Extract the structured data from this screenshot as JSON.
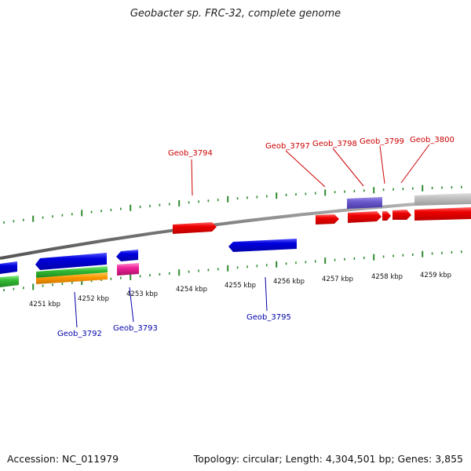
{
  "title": "Geobacter sp. FRC-32, complete genome",
  "footer": {
    "accession": "Accession: NC_011979",
    "summary": "Topology: circular; Length: 4,304,501 bp; Genes: 3,855"
  },
  "colors": {
    "backbone": "#808080",
    "tick": "#2e8b2e",
    "red": "#ee0000",
    "blue": "#0000dd",
    "green": "#33bb33",
    "orange": "#ff9900",
    "pink": "#ee2299",
    "purple": "#6a5acd",
    "grey": "#c0c0c0",
    "label_forward": "#cc0000",
    "label_reverse": "#0000aa"
  },
  "scale_labels": [
    "4251 kbp",
    "4252 kbp",
    "4253 kbp",
    "4254 kbp",
    "4255 kbp",
    "4256 kbp",
    "4257 kbp",
    "4258 kbp",
    "4259 kbp"
  ],
  "gene_labels": {
    "forward": [
      "Geob_3794",
      "Geob_3797",
      "Geob_3798",
      "Geob_3799",
      "Geob_3800"
    ],
    "reverse": [
      "Geob_3792",
      "Geob_3793",
      "Geob_3795"
    ]
  }
}
